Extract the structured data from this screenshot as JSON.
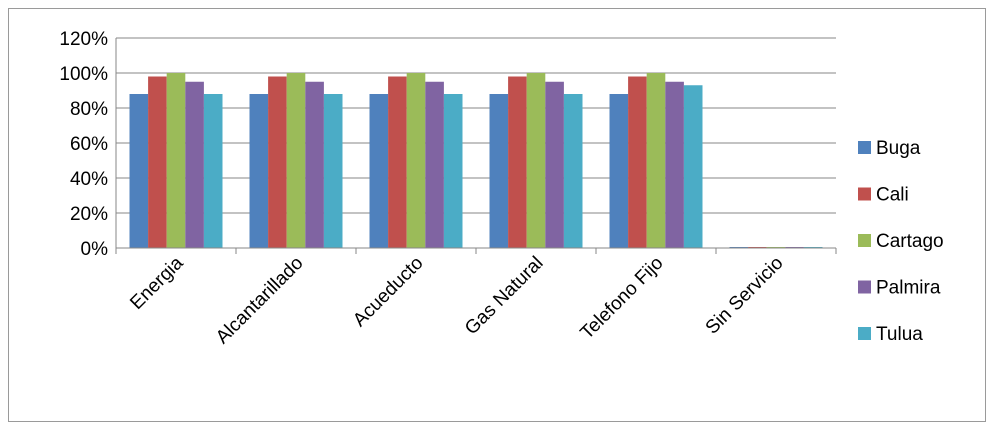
{
  "chart_data": {
    "type": "bar",
    "title": "",
    "xlabel": "",
    "ylabel": "",
    "ylim": [
      0,
      1.2
    ],
    "yticks": [
      "0%",
      "20%",
      "40%",
      "60%",
      "80%",
      "100%",
      "120%"
    ],
    "grid": true,
    "legend_position": "right",
    "categories": [
      "Energia",
      "Alcantarillado",
      "Acueducto",
      "Gas Natural",
      "Telefono Fijo",
      "Sin Servicio"
    ],
    "series": [
      {
        "name": "Buga",
        "color": "#4F81BD",
        "values": [
          0.88,
          0.88,
          0.88,
          0.88,
          0.88,
          0.0
        ]
      },
      {
        "name": "Cali",
        "color": "#C0504D",
        "values": [
          0.98,
          0.98,
          0.98,
          0.98,
          0.98,
          0.0
        ]
      },
      {
        "name": "Cartago",
        "color": "#9BBB59",
        "values": [
          1.0,
          1.0,
          1.0,
          1.0,
          1.0,
          0.0
        ]
      },
      {
        "name": "Palmira",
        "color": "#8064A2",
        "values": [
          0.95,
          0.95,
          0.95,
          0.95,
          0.95,
          0.0
        ]
      },
      {
        "name": "Tulua",
        "color": "#4BACC6",
        "values": [
          0.88,
          0.88,
          0.88,
          0.88,
          0.93,
          0.0
        ]
      }
    ]
  }
}
